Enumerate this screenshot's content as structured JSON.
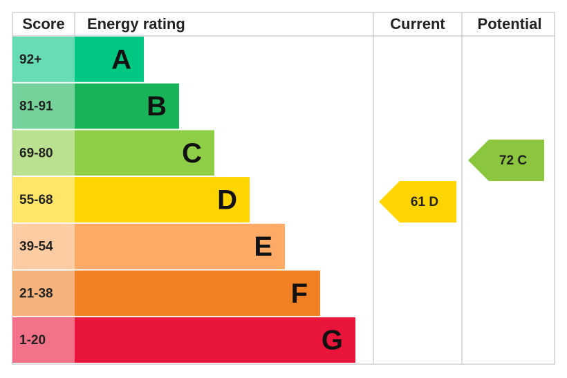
{
  "header": {
    "score": "Score",
    "rating": "Energy rating",
    "current": "Current",
    "potential": "Potential"
  },
  "bands": [
    {
      "range": "92+",
      "letter": "A",
      "color": "#00c781"
    },
    {
      "range": "81-91",
      "letter": "B",
      "color": "#19b459"
    },
    {
      "range": "69-80",
      "letter": "C",
      "color": "#8dce46"
    },
    {
      "range": "55-68",
      "letter": "D",
      "color": "#ffd500"
    },
    {
      "range": "39-54",
      "letter": "E",
      "color": "#fcaa65"
    },
    {
      "range": "21-38",
      "letter": "F",
      "color": "#ef8023"
    },
    {
      "range": "1-20",
      "letter": "G",
      "color": "#e9153b"
    }
  ],
  "current": {
    "label": "61 D",
    "color": "#ffd500"
  },
  "potential": {
    "label": "72 C",
    "color": "#8cc63f"
  }
}
